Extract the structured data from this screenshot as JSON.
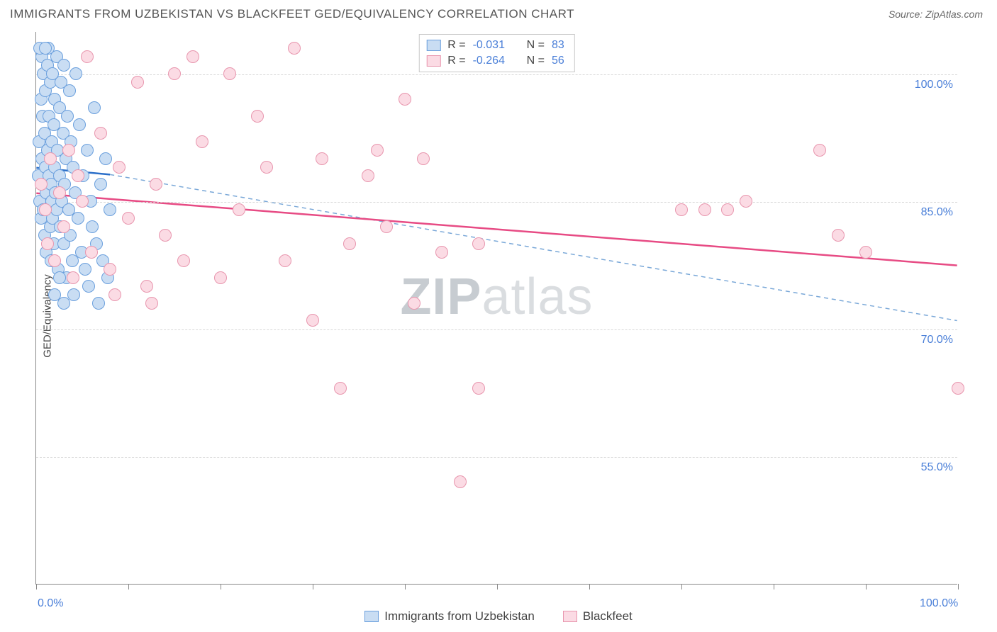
{
  "title": "IMMIGRANTS FROM UZBEKISTAN VS BLACKFEET GED/EQUIVALENCY CORRELATION CHART",
  "source_label": "Source: ",
  "source_value": "ZipAtlas.com",
  "ylabel": "GED/Equivalency",
  "watermark_bold": "ZIP",
  "watermark_rest": "atlas",
  "chart": {
    "type": "scatter",
    "xlim": [
      0,
      100
    ],
    "ylim": [
      40,
      105
    ],
    "x_ticks": [
      0,
      10,
      20,
      30,
      40,
      50,
      60,
      70,
      80,
      90,
      100
    ],
    "x_tick_labels": {
      "0": "0.0%",
      "100": "100.0%"
    },
    "y_gridlines": [
      55,
      70,
      85,
      100
    ],
    "y_tick_labels": {
      "55": "55.0%",
      "70": "70.0%",
      "85": "85.0%",
      "100": "100.0%"
    },
    "background_color": "#ffffff",
    "grid_color": "#d8d8d8",
    "axis_color": "#888888",
    "tick_label_color": "#4a7fd8",
    "point_radius": 9,
    "point_stroke_width": 1.5,
    "series": [
      {
        "id": "uzbekistan",
        "label": "Immigrants from Uzbekistan",
        "fill": "#c9ddf3",
        "stroke": "#6a9fdd",
        "R": "-0.031",
        "N": "83",
        "trend": {
          "x1": 0,
          "y1": 89,
          "x2": 8,
          "y2": 88.2,
          "dash_x2": 100,
          "dash_y2": 71,
          "color": "#2b6fc9",
          "width": 2.5,
          "dash_color": "#7aa8d8"
        },
        "points": [
          [
            0.2,
            88
          ],
          [
            0.3,
            92
          ],
          [
            0.4,
            85
          ],
          [
            0.5,
            97
          ],
          [
            0.5,
            83
          ],
          [
            0.6,
            102
          ],
          [
            0.6,
            90
          ],
          [
            0.7,
            95
          ],
          [
            0.7,
            87
          ],
          [
            0.8,
            100
          ],
          [
            0.8,
            84
          ],
          [
            0.9,
            93
          ],
          [
            0.9,
            81
          ],
          [
            1.0,
            98
          ],
          [
            1.0,
            89
          ],
          [
            1.1,
            86
          ],
          [
            1.1,
            79
          ],
          [
            1.2,
            101
          ],
          [
            1.2,
            91
          ],
          [
            1.3,
            84
          ],
          [
            1.3,
            103
          ],
          [
            1.4,
            88
          ],
          [
            1.4,
            95
          ],
          [
            1.5,
            82
          ],
          [
            1.5,
            99
          ],
          [
            1.6,
            87
          ],
          [
            1.6,
            78
          ],
          [
            1.7,
            92
          ],
          [
            1.7,
            85
          ],
          [
            1.8,
            100
          ],
          [
            1.8,
            83
          ],
          [
            1.9,
            94
          ],
          [
            1.9,
            80
          ],
          [
            2.0,
            97
          ],
          [
            2.0,
            89
          ],
          [
            2.1,
            86
          ],
          [
            2.2,
            102
          ],
          [
            2.2,
            84
          ],
          [
            2.3,
            91
          ],
          [
            2.4,
            77
          ],
          [
            2.5,
            96
          ],
          [
            2.5,
            88
          ],
          [
            2.6,
            82
          ],
          [
            2.7,
            99
          ],
          [
            2.8,
            85
          ],
          [
            2.9,
            93
          ],
          [
            3.0,
            80
          ],
          [
            3.0,
            101
          ],
          [
            3.1,
            87
          ],
          [
            3.2,
            90
          ],
          [
            3.3,
            76
          ],
          [
            3.4,
            95
          ],
          [
            3.5,
            84
          ],
          [
            3.6,
            98
          ],
          [
            3.7,
            81
          ],
          [
            3.8,
            92
          ],
          [
            3.9,
            78
          ],
          [
            4.0,
            89
          ],
          [
            4.1,
            74
          ],
          [
            4.2,
            86
          ],
          [
            4.3,
            100
          ],
          [
            4.5,
            83
          ],
          [
            4.7,
            94
          ],
          [
            4.9,
            79
          ],
          [
            5.1,
            88
          ],
          [
            5.3,
            77
          ],
          [
            5.5,
            91
          ],
          [
            5.7,
            75
          ],
          [
            5.9,
            85
          ],
          [
            6.1,
            82
          ],
          [
            6.3,
            96
          ],
          [
            6.5,
            80
          ],
          [
            6.8,
            73
          ],
          [
            7.0,
            87
          ],
          [
            7.2,
            78
          ],
          [
            7.5,
            90
          ],
          [
            7.8,
            76
          ],
          [
            8.0,
            84
          ],
          [
            0.4,
            103
          ],
          [
            1.0,
            103
          ],
          [
            2.0,
            74
          ],
          [
            2.5,
            76
          ],
          [
            3.0,
            73
          ]
        ]
      },
      {
        "id": "blackfeet",
        "label": "Blackfeet",
        "fill": "#fbdbe4",
        "stroke": "#e896ae",
        "R": "-0.264",
        "N": "56",
        "trend": {
          "x1": 0,
          "y1": 86,
          "x2": 100,
          "y2": 77.5,
          "color": "#e74b84",
          "width": 2.5
        },
        "points": [
          [
            0.5,
            87
          ],
          [
            1.0,
            84
          ],
          [
            1.2,
            80
          ],
          [
            1.5,
            90
          ],
          [
            2.0,
            78
          ],
          [
            2.5,
            86
          ],
          [
            3.0,
            82
          ],
          [
            3.5,
            91
          ],
          [
            4.0,
            76
          ],
          [
            4.5,
            88
          ],
          [
            5.0,
            85
          ],
          [
            6.0,
            79
          ],
          [
            7.0,
            93
          ],
          [
            8.0,
            77
          ],
          [
            9.0,
            89
          ],
          [
            10.0,
            83
          ],
          [
            11.0,
            99
          ],
          [
            12.0,
            75
          ],
          [
            13.0,
            87
          ],
          [
            14.0,
            81
          ],
          [
            15.0,
            100
          ],
          [
            16.0,
            78
          ],
          [
            18.0,
            92
          ],
          [
            20.0,
            76
          ],
          [
            21.0,
            100
          ],
          [
            22.0,
            84
          ],
          [
            24.0,
            95
          ],
          [
            25.0,
            89
          ],
          [
            27.0,
            78
          ],
          [
            28.0,
            103
          ],
          [
            30.0,
            71
          ],
          [
            31.0,
            90
          ],
          [
            33.0,
            63
          ],
          [
            34.0,
            80
          ],
          [
            37.0,
            91
          ],
          [
            38.0,
            82
          ],
          [
            40.0,
            97
          ],
          [
            41.0,
            73
          ],
          [
            42.0,
            90
          ],
          [
            44.0,
            79
          ],
          [
            46.0,
            52
          ],
          [
            48.0,
            63
          ],
          [
            48.0,
            80
          ],
          [
            70.0,
            84
          ],
          [
            72.5,
            84
          ],
          [
            75.0,
            84
          ],
          [
            77.0,
            85
          ],
          [
            85.0,
            91
          ],
          [
            87.0,
            81
          ],
          [
            90.0,
            79
          ],
          [
            100.0,
            63
          ],
          [
            5.5,
            102
          ],
          [
            17.0,
            102
          ],
          [
            8.5,
            74
          ],
          [
            12.5,
            73
          ],
          [
            36.0,
            88
          ]
        ]
      }
    ]
  },
  "legend_top_labels": {
    "R": "R =",
    "N": "N ="
  }
}
